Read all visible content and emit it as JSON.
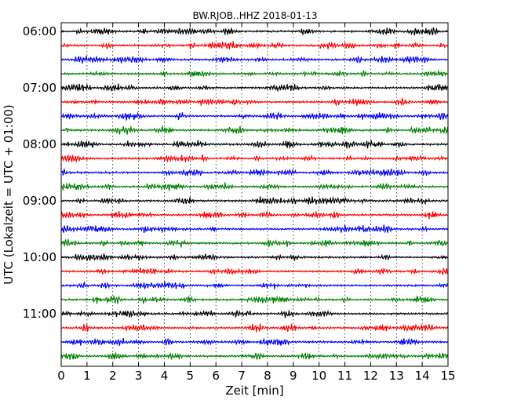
{
  "chart_data": {
    "type": "line",
    "chart_style": "seismogram dayplot (helicorder)",
    "title": "BW.RJOB..HHZ 2018-01-13",
    "xlabel": "Zeit  [min]",
    "ylabel": "UTC (Lokalzeit = UTC + 01:00)",
    "xlim": [
      0,
      15
    ],
    "x_ticks": [
      "0",
      "1",
      "2",
      "3",
      "4",
      "5",
      "6",
      "7",
      "8",
      "9",
      "10",
      "11",
      "12",
      "13",
      "14",
      "15"
    ],
    "y_ticks": [
      "06:00",
      "07:00",
      "08:00",
      "09:00",
      "10:00",
      "11:00"
    ],
    "grid": "vertical dotted lines at each minute",
    "trace_colors": [
      "#000000",
      "#ff0000",
      "#0000ff",
      "#008000"
    ],
    "trace_count": 24,
    "trace_interval_min": 15,
    "trace_start_times": [
      "06:00",
      "06:15",
      "06:30",
      "06:45",
      "07:00",
      "07:15",
      "07:30",
      "07:45",
      "08:00",
      "08:15",
      "08:30",
      "08:45",
      "09:00",
      "09:15",
      "09:30",
      "09:45",
      "10:00",
      "10:15",
      "10:30",
      "10:45",
      "11:00",
      "11:15",
      "11:30",
      "11:45"
    ]
  }
}
